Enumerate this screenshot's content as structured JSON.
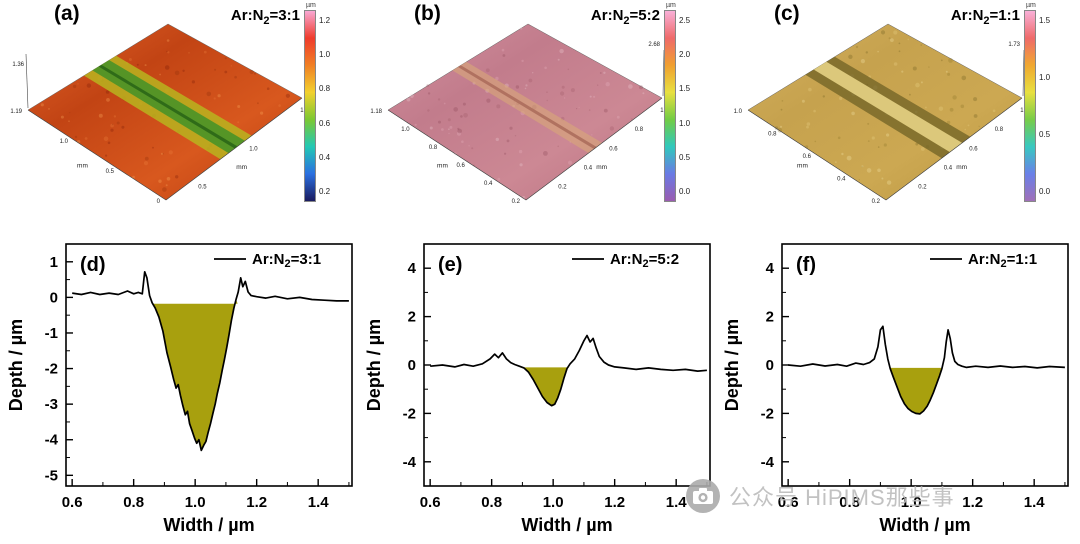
{
  "watermark": {
    "icon": "camera-icon",
    "text": "公众号 HiPIMS那些事"
  },
  "surface_panels": [
    {
      "label": "(a)",
      "ratio": {
        "pre": "Ar:N",
        "sub": "2",
        "post": "=3:1"
      },
      "colorbar": {
        "unit": "µm",
        "ticks": [
          "1.2",
          "1.0",
          "0.8",
          "0.6",
          "0.4",
          "0.2"
        ],
        "stops": [
          "#f9a8d4",
          "#ef3b2c",
          "#f07f24",
          "#f2d12e",
          "#7cc832",
          "#22c8b4",
          "#2a6fe0",
          "#1a1a5e"
        ]
      },
      "surface": {
        "z_label": "1.36",
        "z_side": "left",
        "x_ticks": [
          "1.19",
          "1.0",
          "0.5",
          "0"
        ],
        "x_unit": "mm",
        "y_ticks": [
          "0.5",
          "1.0",
          "1.15"
        ],
        "y_unit": "mm",
        "base_colors": [
          "#e0622a",
          "#c24414",
          "#d8581e",
          "#b83c10"
        ],
        "noise_colors": [
          "#f08040",
          "#7a1c06",
          "#ffb060",
          "#902d0a"
        ],
        "stripes": [
          {
            "u1": 0.4,
            "u2": 0.63,
            "color": "#b8b41e",
            "opacity": 0.85
          },
          {
            "u1": 0.46,
            "u2": 0.58,
            "color": "#4f9427",
            "opacity": 0.95
          },
          {
            "u1": 0.505,
            "u2": 0.525,
            "color": "#2f6b18",
            "opacity": 1
          }
        ]
      }
    },
    {
      "label": "(b)",
      "ratio": {
        "pre": "Ar:N",
        "sub": "2",
        "post": "=5:2"
      },
      "colorbar": {
        "unit": "µm",
        "ticks": [
          "2.5",
          "2.0",
          "1.5",
          "1.0",
          "0.5",
          "0.0"
        ],
        "stops": [
          "#f9b0d8",
          "#ef6a6a",
          "#f0a030",
          "#e8e040",
          "#72cc44",
          "#30c8bc",
          "#6a7ae4",
          "#9a5cb0"
        ]
      },
      "surface": {
        "z_label": "2.68",
        "z_side": "right",
        "x_ticks": [
          "1.18",
          "1.0",
          "0.8",
          "0.6",
          "0.4",
          "0.2"
        ],
        "x_unit": "mm",
        "y_ticks": [
          "0.2",
          "0.4",
          "0.6",
          "0.8",
          "1.0"
        ],
        "y_unit": "mm",
        "base_colors": [
          "#d2909e",
          "#c27c8c",
          "#cc8894",
          "#ba7080"
        ],
        "noise_colors": [
          "#e8b4c0",
          "#a05868",
          "#f0d0d8",
          "#8a4656"
        ],
        "stripes": [
          {
            "u1": 0.46,
            "u2": 0.56,
            "color": "#d8a878",
            "opacity": 0.6
          },
          {
            "u1": 0.5,
            "u2": 0.52,
            "color": "#a86858",
            "opacity": 0.8
          }
        ]
      }
    },
    {
      "label": "(c)",
      "ratio": {
        "pre": "Ar:N",
        "sub": "2",
        "post": "=1:1"
      },
      "colorbar": {
        "unit": "µm",
        "ticks": [
          "1.5",
          "1.0",
          "0.5",
          "0.0"
        ],
        "stops": [
          "#f9b0d8",
          "#ef6a6a",
          "#f0a830",
          "#e8e040",
          "#78cc48",
          "#38c8c0",
          "#6a80e8",
          "#a070b8"
        ]
      },
      "surface": {
        "z_label": "1.73",
        "z_side": "right",
        "x_ticks": [
          "1.0",
          "0.8",
          "0.6",
          "0.4",
          "0.2"
        ],
        "x_unit": "mm",
        "y_ticks": [
          "0.2",
          "0.4",
          "0.6",
          "0.8",
          "1.0"
        ],
        "y_unit": "mm",
        "base_colors": [
          "#d4b05e",
          "#c6a24e",
          "#cca852",
          "#ba9640"
        ],
        "noise_colors": [
          "#ecd488",
          "#8a7428",
          "#f6e8ac",
          "#6e5c1e"
        ],
        "stripes": [
          {
            "u1": 0.41,
            "u2": 0.62,
            "color": "#6f6224",
            "opacity": 0.75
          },
          {
            "u1": 0.47,
            "u2": 0.56,
            "color": "#e6d284",
            "opacity": 0.9
          }
        ]
      }
    }
  ],
  "chart_data": [
    {
      "type": "line",
      "panel": "(d)",
      "legend": {
        "pre": "Ar:N",
        "sub": "2",
        "post": "=3:1"
      },
      "xlabel": "Width / µm",
      "ylabel": "Depth / µm",
      "xlim": [
        0.58,
        1.51
      ],
      "ylim": [
        -5.3,
        1.5
      ],
      "xticks": [
        0.6,
        0.8,
        1.0,
        1.2,
        1.4
      ],
      "yticks": [
        1,
        0,
        -1,
        -2,
        -3,
        -4,
        -5
      ],
      "x_minor": 0.1,
      "y_minor": 0.5,
      "line_color": "#000000",
      "fill_color": "#a8a00e",
      "fill_baseline": -0.18,
      "fill_range": [
        0.862,
        1.138
      ],
      "points": [
        [
          0.6,
          0.12
        ],
        [
          0.63,
          0.08
        ],
        [
          0.66,
          0.14
        ],
        [
          0.69,
          0.08
        ],
        [
          0.72,
          0.12
        ],
        [
          0.75,
          0.08
        ],
        [
          0.78,
          0.18
        ],
        [
          0.8,
          0.1
        ],
        [
          0.815,
          0.14
        ],
        [
          0.828,
          0.1
        ],
        [
          0.836,
          0.72
        ],
        [
          0.843,
          0.55
        ],
        [
          0.852,
          0.05
        ],
        [
          0.86,
          -0.15
        ],
        [
          0.87,
          -0.3
        ],
        [
          0.882,
          -0.55
        ],
        [
          0.895,
          -0.95
        ],
        [
          0.908,
          -1.55
        ],
        [
          0.92,
          -1.95
        ],
        [
          0.93,
          -2.3
        ],
        [
          0.938,
          -2.55
        ],
        [
          0.945,
          -2.45
        ],
        [
          0.952,
          -2.75
        ],
        [
          0.96,
          -3.05
        ],
        [
          0.968,
          -3.3
        ],
        [
          0.975,
          -3.2
        ],
        [
          0.982,
          -3.55
        ],
        [
          0.99,
          -3.75
        ],
        [
          0.998,
          -3.95
        ],
        [
          1.005,
          -4.1
        ],
        [
          1.012,
          -4.0
        ],
        [
          1.02,
          -4.3
        ],
        [
          1.028,
          -4.15
        ],
        [
          1.035,
          -4.05
        ],
        [
          1.042,
          -3.8
        ],
        [
          1.05,
          -3.55
        ],
        [
          1.058,
          -3.25
        ],
        [
          1.065,
          -3.0
        ],
        [
          1.072,
          -2.7
        ],
        [
          1.08,
          -2.4
        ],
        [
          1.088,
          -2.05
        ],
        [
          1.095,
          -1.75
        ],
        [
          1.103,
          -1.4
        ],
        [
          1.11,
          -1.05
        ],
        [
          1.118,
          -0.65
        ],
        [
          1.126,
          -0.3
        ],
        [
          1.133,
          -0.05
        ],
        [
          1.14,
          0.15
        ],
        [
          1.148,
          0.55
        ],
        [
          1.155,
          0.3
        ],
        [
          1.163,
          0.45
        ],
        [
          1.172,
          0.15
        ],
        [
          1.182,
          0.05
        ],
        [
          1.2,
          0.02
        ],
        [
          1.23,
          -0.02
        ],
        [
          1.26,
          0.03
        ],
        [
          1.3,
          -0.04
        ],
        [
          1.34,
          0.0
        ],
        [
          1.38,
          -0.06
        ],
        [
          1.42,
          -0.08
        ],
        [
          1.46,
          -0.1
        ],
        [
          1.5,
          -0.1
        ]
      ]
    },
    {
      "type": "line",
      "panel": "(e)",
      "legend": {
        "pre": "Ar:N",
        "sub": "2",
        "post": "=5:2"
      },
      "xlabel": "Width / µm",
      "ylabel": "Depth / µm",
      "xlim": [
        0.58,
        1.51
      ],
      "ylim": [
        -5,
        5
      ],
      "xticks": [
        0.6,
        0.8,
        1.0,
        1.2,
        1.4
      ],
      "yticks": [
        4,
        2,
        0,
        -2,
        -4
      ],
      "x_minor": 0.1,
      "y_minor": 1,
      "line_color": "#000000",
      "fill_color": "#a8a00e",
      "fill_baseline": -0.1,
      "fill_range": [
        0.905,
        1.052
      ],
      "points": [
        [
          0.6,
          -0.05
        ],
        [
          0.64,
          0.0
        ],
        [
          0.68,
          -0.08
        ],
        [
          0.71,
          0.02
        ],
        [
          0.74,
          -0.05
        ],
        [
          0.77,
          0.05
        ],
        [
          0.795,
          0.25
        ],
        [
          0.81,
          0.45
        ],
        [
          0.822,
          0.3
        ],
        [
          0.835,
          0.5
        ],
        [
          0.848,
          0.25
        ],
        [
          0.862,
          0.1
        ],
        [
          0.875,
          0.02
        ],
        [
          0.89,
          -0.05
        ],
        [
          0.905,
          -0.12
        ],
        [
          0.92,
          -0.3
        ],
        [
          0.935,
          -0.6
        ],
        [
          0.95,
          -0.95
        ],
        [
          0.965,
          -1.3
        ],
        [
          0.98,
          -1.55
        ],
        [
          0.995,
          -1.68
        ],
        [
          1.005,
          -1.62
        ],
        [
          1.015,
          -1.35
        ],
        [
          1.025,
          -1.0
        ],
        [
          1.035,
          -0.55
        ],
        [
          1.045,
          -0.15
        ],
        [
          1.055,
          0.05
        ],
        [
          1.07,
          0.25
        ],
        [
          1.085,
          0.6
        ],
        [
          1.1,
          1.0
        ],
        [
          1.11,
          1.22
        ],
        [
          1.12,
          0.95
        ],
        [
          1.13,
          1.1
        ],
        [
          1.14,
          0.7
        ],
        [
          1.15,
          0.35
        ],
        [
          1.165,
          0.12
        ],
        [
          1.18,
          0.0
        ],
        [
          1.2,
          -0.08
        ],
        [
          1.23,
          -0.12
        ],
        [
          1.27,
          -0.18
        ],
        [
          1.31,
          -0.12
        ],
        [
          1.35,
          -0.18
        ],
        [
          1.39,
          -0.22
        ],
        [
          1.43,
          -0.18
        ],
        [
          1.47,
          -0.25
        ],
        [
          1.5,
          -0.22
        ]
      ]
    },
    {
      "type": "line",
      "panel": "(f)",
      "legend": {
        "pre": "Ar:N",
        "sub": "2",
        "post": "=1:1"
      },
      "xlabel": "Width / µm",
      "ylabel": "Depth / µm",
      "xlim": [
        0.58,
        1.51
      ],
      "ylim": [
        -5,
        5
      ],
      "xticks": [
        0.6,
        0.8,
        1.0,
        1.2,
        1.4
      ],
      "yticks": [
        4,
        2,
        0,
        -2,
        -4
      ],
      "x_minor": 0.1,
      "y_minor": 1,
      "line_color": "#000000",
      "fill_color": "#a8a00e",
      "fill_baseline": -0.12,
      "fill_range": [
        0.93,
        1.098
      ],
      "points": [
        [
          0.6,
          0.0
        ],
        [
          0.64,
          -0.05
        ],
        [
          0.68,
          0.04
        ],
        [
          0.72,
          -0.04
        ],
        [
          0.76,
          0.02
        ],
        [
          0.79,
          -0.05
        ],
        [
          0.82,
          0.08
        ],
        [
          0.845,
          0.02
        ],
        [
          0.865,
          0.1
        ],
        [
          0.88,
          0.25
        ],
        [
          0.892,
          0.75
        ],
        [
          0.9,
          1.45
        ],
        [
          0.908,
          1.6
        ],
        [
          0.916,
          0.85
        ],
        [
          0.924,
          0.25
        ],
        [
          0.932,
          -0.15
        ],
        [
          0.942,
          -0.5
        ],
        [
          0.954,
          -0.9
        ],
        [
          0.966,
          -1.3
        ],
        [
          0.978,
          -1.6
        ],
        [
          0.99,
          -1.8
        ],
        [
          1.002,
          -1.92
        ],
        [
          1.015,
          -2.0
        ],
        [
          1.028,
          -2.02
        ],
        [
          1.04,
          -1.9
        ],
        [
          1.052,
          -1.7
        ],
        [
          1.062,
          -1.45
        ],
        [
          1.072,
          -1.15
        ],
        [
          1.082,
          -0.8
        ],
        [
          1.092,
          -0.45
        ],
        [
          1.1,
          -0.15
        ],
        [
          1.108,
          0.3
        ],
        [
          1.114,
          0.95
        ],
        [
          1.12,
          1.45
        ],
        [
          1.127,
          1.1
        ],
        [
          1.134,
          0.5
        ],
        [
          1.142,
          0.15
        ],
        [
          1.152,
          0.02
        ],
        [
          1.165,
          -0.05
        ],
        [
          1.18,
          -0.1
        ],
        [
          1.21,
          -0.05
        ],
        [
          1.25,
          -0.1
        ],
        [
          1.29,
          -0.04
        ],
        [
          1.33,
          -0.1
        ],
        [
          1.37,
          -0.06
        ],
        [
          1.41,
          -0.12
        ],
        [
          1.45,
          -0.06
        ],
        [
          1.5,
          -0.1
        ]
      ]
    }
  ]
}
